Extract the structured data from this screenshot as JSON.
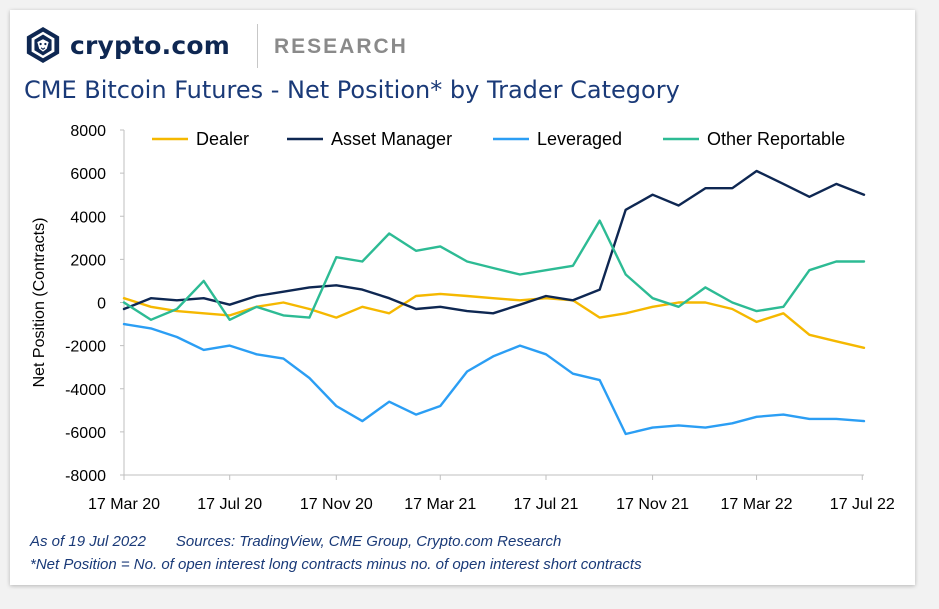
{
  "brand": {
    "name": "crypto.com",
    "section": "RESEARCH"
  },
  "title": "CME Bitcoin Futures - Net Position* by Trader Category",
  "footer": {
    "as_of": "As of 19 Jul 2022",
    "sources": "Sources: TradingView, CME Group, Crypto.com Research",
    "footnote": "*Net Position = No. of open interest long contracts minus no. of open interest short contracts"
  },
  "chart_data": {
    "type": "line",
    "ylabel": "Net Position (Contracts)",
    "ylim": [
      -8000,
      8000
    ],
    "yticks": [
      8000,
      6000,
      4000,
      2000,
      0,
      -2000,
      -4000,
      -6000,
      -8000
    ],
    "ytick_labels": [
      "8000",
      "6000",
      "4000",
      "2000",
      "0",
      "-2000",
      "-4000",
      "-6000",
      "-8000"
    ],
    "xlim": [
      "2020-03-17",
      "2022-07-19"
    ],
    "xticks": [
      "2020-03-17",
      "2020-07-17",
      "2020-11-17",
      "2021-03-17",
      "2021-07-17",
      "2021-11-17",
      "2022-03-17",
      "2022-07-17"
    ],
    "xtick_labels": [
      "17 Mar 20",
      "17 Jul 20",
      "17 Nov 20",
      "17 Mar 21",
      "17 Jul 21",
      "17 Nov 21",
      "17 Mar 22",
      "17 Jul 22"
    ],
    "grid": false,
    "legend_position": "top",
    "dates": [
      "2020-03-17",
      "2020-04-17",
      "2020-05-17",
      "2020-06-17",
      "2020-07-17",
      "2020-08-17",
      "2020-09-17",
      "2020-10-17",
      "2020-11-17",
      "2020-12-17",
      "2021-01-17",
      "2021-02-17",
      "2021-03-17",
      "2021-04-17",
      "2021-05-17",
      "2021-06-17",
      "2021-07-17",
      "2021-08-17",
      "2021-09-17",
      "2021-10-17",
      "2021-11-17",
      "2021-12-17",
      "2022-01-17",
      "2022-02-17",
      "2022-03-17",
      "2022-04-17",
      "2022-05-17",
      "2022-06-17",
      "2022-07-19"
    ],
    "series": [
      {
        "name": "Dealer",
        "color": "#f5b800",
        "values": [
          200,
          -200,
          -400,
          -500,
          -600,
          -200,
          0,
          -300,
          -700,
          -200,
          -500,
          300,
          400,
          300,
          200,
          100,
          200,
          100,
          -700,
          -500,
          -200,
          0,
          0,
          -300,
          -900,
          -500,
          -1500,
          -1800,
          -2100
        ]
      },
      {
        "name": "Asset Manager",
        "color": "#0e2752",
        "values": [
          -300,
          200,
          100,
          200,
          -100,
          300,
          500,
          700,
          800,
          600,
          200,
          -300,
          -200,
          -400,
          -500,
          -100,
          300,
          100,
          600,
          4300,
          5000,
          4500,
          5300,
          5300,
          6100,
          5500,
          4900,
          5500,
          5000
        ]
      },
      {
        "name": "Leveraged",
        "color": "#2b9ef4",
        "values": [
          -1000,
          -1200,
          -1600,
          -2200,
          -2000,
          -2400,
          -2600,
          -3500,
          -4800,
          -5500,
          -4600,
          -5200,
          -4800,
          -3200,
          -2500,
          -2000,
          -2400,
          -3300,
          -3600,
          -6100,
          -5800,
          -5700,
          -5800,
          -5600,
          -5300,
          -5200,
          -5400,
          -5400,
          -5500
        ]
      },
      {
        "name": "Other Reportable",
        "color": "#2dbb94",
        "values": [
          0,
          -800,
          -300,
          1000,
          -800,
          -200,
          -600,
          -700,
          2100,
          1900,
          3200,
          2400,
          2600,
          1900,
          1600,
          1300,
          1500,
          1700,
          3800,
          1300,
          200,
          -200,
          700,
          0,
          -400,
          -200,
          1500,
          1900,
          1900
        ]
      }
    ]
  }
}
